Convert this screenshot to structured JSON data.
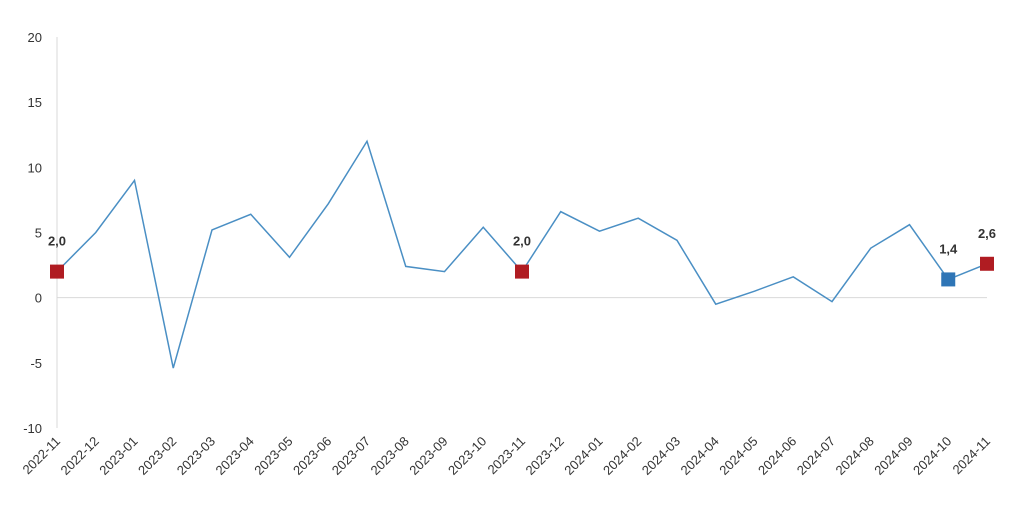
{
  "chart_data": {
    "type": "line",
    "x": [
      "2022-11",
      "2022-12",
      "2023-01",
      "2023-02",
      "2023-03",
      "2023-04",
      "2023-05",
      "2023-06",
      "2023-07",
      "2023-08",
      "2023-09",
      "2023-10",
      "2023-11",
      "2023-12",
      "2024-01",
      "2024-02",
      "2024-03",
      "2024-04",
      "2024-05",
      "2024-06",
      "2024-07",
      "2024-08",
      "2024-09",
      "2024-10",
      "2024-11"
    ],
    "series": [
      {
        "color": "#4a8fc4",
        "values": [
          2.0,
          5.0,
          9.0,
          -5.4,
          5.2,
          6.4,
          3.1,
          7.2,
          12.0,
          2.4,
          2.0,
          5.4,
          2.0,
          6.6,
          5.1,
          6.1,
          4.4,
          -0.5,
          0.5,
          1.6,
          -0.3,
          3.8,
          5.6,
          1.4,
          2.6
        ],
        "value_labels": [
          "2,0",
          null,
          null,
          null,
          null,
          null,
          null,
          null,
          null,
          null,
          null,
          null,
          "2,0",
          null,
          null,
          null,
          null,
          null,
          null,
          null,
          null,
          null,
          null,
          "1,4",
          "2,6"
        ],
        "marker_colors": [
          "#b01c22",
          null,
          null,
          null,
          null,
          null,
          null,
          null,
          null,
          null,
          null,
          null,
          "#b01c22",
          null,
          null,
          null,
          null,
          null,
          null,
          null,
          null,
          null,
          null,
          "#2e75b6",
          "#b01c22"
        ]
      }
    ],
    "ylim": [
      -10,
      20
    ],
    "yticks": [
      -10,
      -5,
      0,
      5,
      10,
      15,
      20
    ]
  }
}
